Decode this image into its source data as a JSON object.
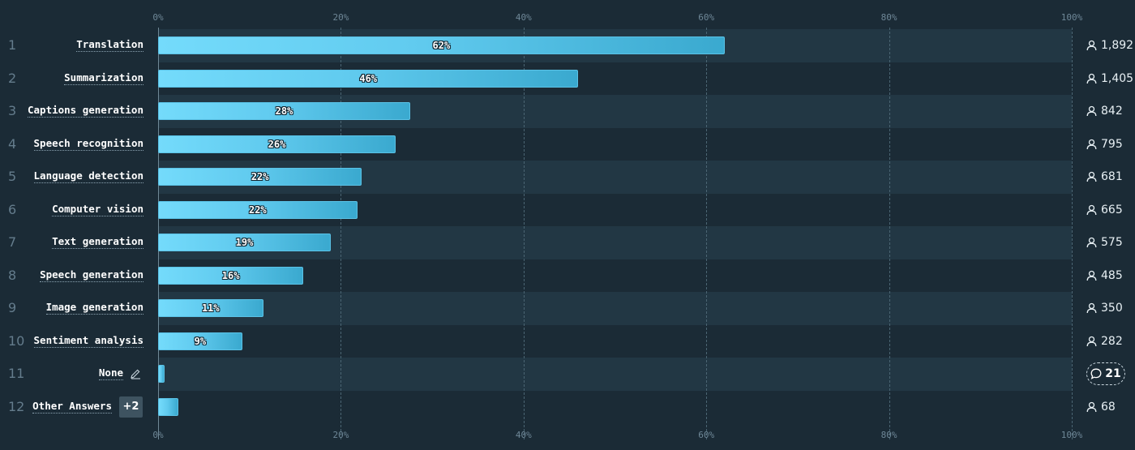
{
  "chart_data": {
    "type": "bar",
    "orientation": "horizontal",
    "xlim": [
      0,
      100
    ],
    "ticks": [
      "0%",
      "20%",
      "40%",
      "60%",
      "80%",
      "100%"
    ],
    "tick_values": [
      0,
      20,
      40,
      60,
      80,
      100
    ],
    "grid": true,
    "bar_color": "#5fcbef",
    "band_color": "#223744",
    "background": "#1b2b36",
    "rows": [
      {
        "rank": "1",
        "label": "Translation",
        "value": 62,
        "value_label": "62%",
        "count": "1,892",
        "count_type": "users"
      },
      {
        "rank": "2",
        "label": "Summarization",
        "value": 46,
        "value_label": "46%",
        "count": "1,405",
        "count_type": "users"
      },
      {
        "rank": "3",
        "label": "Captions generation",
        "value": 27.6,
        "value_label": "28%",
        "count": "842",
        "count_type": "users"
      },
      {
        "rank": "4",
        "label": "Speech recognition",
        "value": 26,
        "value_label": "26%",
        "count": "795",
        "count_type": "users"
      },
      {
        "rank": "5",
        "label": "Language detection",
        "value": 22.3,
        "value_label": "22%",
        "count": "681",
        "count_type": "users"
      },
      {
        "rank": "6",
        "label": "Computer vision",
        "value": 21.8,
        "value_label": "22%",
        "count": "665",
        "count_type": "users"
      },
      {
        "rank": "7",
        "label": "Text generation",
        "value": 18.9,
        "value_label": "19%",
        "count": "575",
        "count_type": "users"
      },
      {
        "rank": "8",
        "label": "Speech generation",
        "value": 15.9,
        "value_label": "16%",
        "count": "485",
        "count_type": "users"
      },
      {
        "rank": "9",
        "label": "Image generation",
        "value": 11.5,
        "value_label": "11%",
        "count": "350",
        "count_type": "users"
      },
      {
        "rank": "10",
        "label": "Sentiment analysis",
        "value": 9.2,
        "value_label": "9%",
        "count": "282",
        "count_type": "users"
      },
      {
        "rank": "11",
        "label": "None",
        "value": 0.7,
        "value_label": "",
        "count": "21",
        "count_type": "comments",
        "edit_icon": "pencil-icon"
      },
      {
        "rank": "12",
        "label": "Other Answers",
        "value": 2.2,
        "value_label": "",
        "count": "68",
        "count_type": "users",
        "badge": "+2"
      }
    ]
  }
}
